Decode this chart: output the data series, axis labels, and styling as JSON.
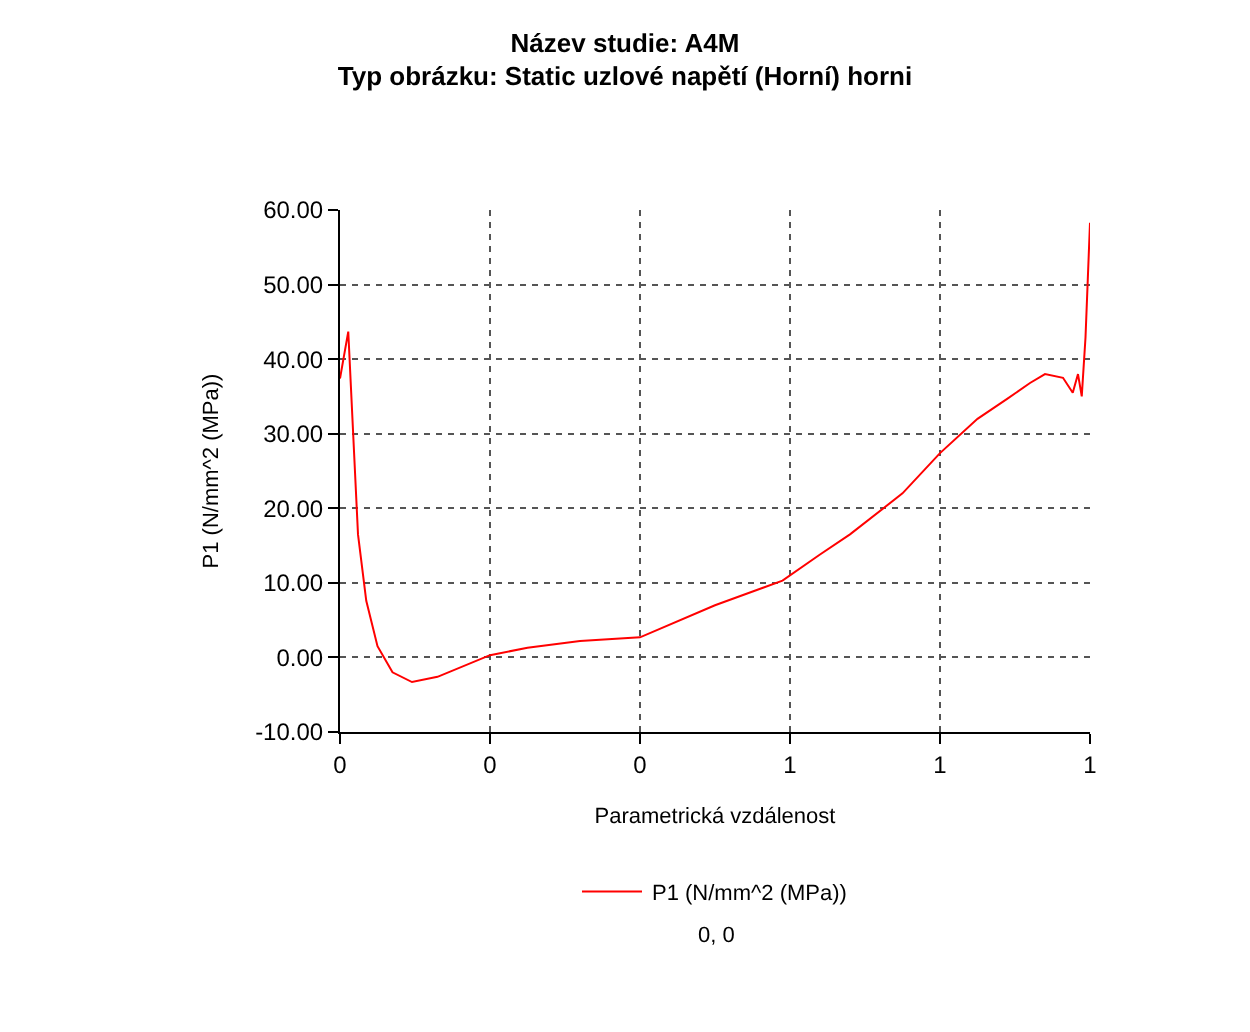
{
  "chart_data": {
    "type": "line",
    "title": "Název studie: A4M",
    "subtitle": "Typ obrázku: Static uzlové napětí (Horní) horni",
    "xlabel": "Parametrická vzdálenost",
    "ylabel": "P1 (N/mm^2 (MPa))",
    "annotations": [
      "0, 0"
    ],
    "x": [
      0,
      0.011,
      0.024,
      0.035,
      0.05,
      0.07,
      0.096,
      0.13,
      0.2,
      0.25,
      0.32,
      0.4,
      0.5,
      0.59,
      0.64,
      0.68,
      0.75,
      0.8,
      0.85,
      0.89,
      0.92,
      0.94,
      0.964,
      0.977,
      0.984,
      0.989,
      0.994,
      0.997,
      1.0
    ],
    "series": [
      {
        "name": "P1 (N/mm^2 (MPa))",
        "color": "#ff0000",
        "values": [
          37.4,
          43.7,
          16.5,
          7.6,
          1.5,
          -2.0,
          -3.3,
          -2.6,
          0.3,
          1.3,
          2.2,
          2.7,
          7.0,
          10.3,
          13.8,
          16.5,
          22.0,
          27.4,
          32.0,
          34.7,
          36.8,
          38.0,
          37.5,
          35.5,
          38.0,
          35.0,
          42.9,
          50.6,
          58.3
        ]
      }
    ],
    "xlim": [
      0,
      1
    ],
    "xticks": [
      {
        "value": 0,
        "label": "0"
      },
      {
        "value": 0.2,
        "label": "0"
      },
      {
        "value": 0.4,
        "label": "0"
      },
      {
        "value": 0.6,
        "label": "1"
      },
      {
        "value": 0.8,
        "label": "1"
      },
      {
        "value": 1,
        "label": "1"
      }
    ],
    "ylim": [
      -10,
      60
    ],
    "yticks": [
      {
        "value": -10,
        "label": "-10.00"
      },
      {
        "value": 0,
        "label": "0.00"
      },
      {
        "value": 10,
        "label": "10.00"
      },
      {
        "value": 20,
        "label": "20.00"
      },
      {
        "value": 30,
        "label": "30.00"
      },
      {
        "value": 40,
        "label": "40.00"
      },
      {
        "value": 50,
        "label": "50.00"
      },
      {
        "value": 60,
        "label": "60.00"
      }
    ],
    "grid": true,
    "legend": "bottom",
    "marker": "none",
    "line_style": "solid"
  }
}
